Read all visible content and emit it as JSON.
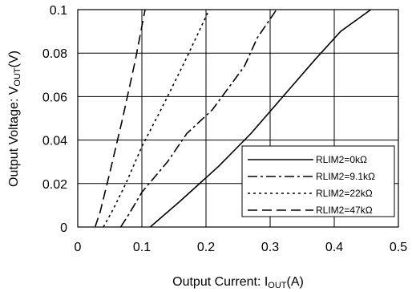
{
  "chart_data": {
    "type": "line",
    "xlabel": "Output Current: I",
    "xlabel_sub": "OUT",
    "xlabel_unit": "(A)",
    "ylabel": "Output Voltage: V",
    "ylabel_sub": "OUT",
    "ylabel_unit": "(V)",
    "xlim": [
      0,
      0.5
    ],
    "ylim": [
      0,
      0.1
    ],
    "x_ticks": [
      "0",
      "0.1",
      "0.2",
      "0.3",
      "0.4",
      "0.5"
    ],
    "y_ticks": [
      "0",
      "0.02",
      "0.04",
      "0.06",
      "0.08",
      "0.1"
    ],
    "grid": true,
    "legend_position": "bottom-right",
    "series": [
      {
        "name": "RLIM2=0kΩ",
        "dash": "solid",
        "x": [
          0.113,
          0.16,
          0.22,
          0.27,
          0.32,
          0.37,
          0.41,
          0.457
        ],
        "y": [
          0,
          0.012,
          0.028,
          0.043,
          0.06,
          0.077,
          0.09,
          0.1
        ]
      },
      {
        "name": "RLIM2=9.1kΩ",
        "dash": "dashdot",
        "x": [
          0.067,
          0.08,
          0.1,
          0.14,
          0.17,
          0.21,
          0.26,
          0.28,
          0.31
        ],
        "y": [
          0,
          0.006,
          0.016,
          0.03,
          0.043,
          0.054,
          0.074,
          0.087,
          0.1
        ]
      },
      {
        "name": "RLIM2=22kΩ",
        "dash": "dotted",
        "x": [
          0.04,
          0.055,
          0.075,
          0.1,
          0.135,
          0.17,
          0.205
        ],
        "y": [
          0,
          0.008,
          0.02,
          0.037,
          0.057,
          0.078,
          0.1
        ]
      },
      {
        "name": "RLIM2=47kΩ",
        "dash": "dashed",
        "x": [
          0.027,
          0.035,
          0.05,
          0.07,
          0.09,
          0.105
        ],
        "y": [
          0,
          0.007,
          0.025,
          0.05,
          0.077,
          0.1
        ]
      }
    ]
  }
}
